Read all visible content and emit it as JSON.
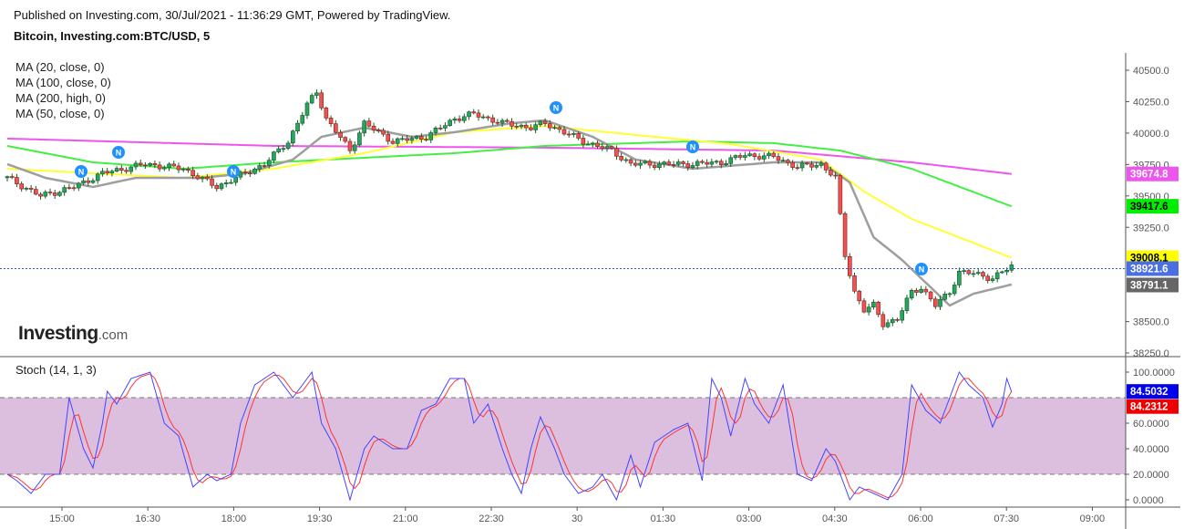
{
  "header": {
    "published": "Published on Investing.com, 30/Jul/2021 - 11:36:29 GMT, Powered by TradingView.",
    "symbol": "Bitcoin, Investing.com:BTC/USD, 5"
  },
  "indicators": [
    "MA (20, close, 0)",
    "MA (100, close, 0)",
    "MA (200, high, 0)",
    "MA (50, close, 0)"
  ],
  "logo": {
    "main": "Investing",
    "suffix": ".com"
  },
  "colors": {
    "up": "#26a65b",
    "down": "#ef5350",
    "ma20": "#9e9e9e",
    "ma50": "#ffff33",
    "ma100": "#44ee44",
    "ma200": "#ee55ee",
    "k": "#4444ff",
    "d": "#ff3333",
    "band": "#dcbfdf"
  },
  "chart_data": [
    {
      "type": "candlestick",
      "title": "Bitcoin, Investing.com:BTC/USD, 5",
      "ylim": [
        38200,
        40600
      ],
      "y_ticks": [
        "40500.0",
        "40250.0",
        "40000.0",
        "39750.0",
        "39500.0",
        "39250.0",
        "38500.0",
        "38250.0"
      ],
      "y_tick_values": [
        40500,
        40250,
        40000,
        39750,
        39500,
        39250,
        38500,
        38250
      ],
      "x_ticks": [
        "15:00",
        "16:30",
        "18:00",
        "19:30",
        "21:00",
        "22:30",
        "30",
        "01:30",
        "03:00",
        "04:30",
        "06:00",
        "07:30",
        "09:00"
      ],
      "bar_minutes": 5,
      "close_keyframes": [
        [
          0,
          39644
        ],
        [
          7,
          39499
        ],
        [
          14,
          39571
        ],
        [
          20,
          39680
        ],
        [
          29,
          39753
        ],
        [
          37,
          39716
        ],
        [
          44,
          39571
        ],
        [
          48,
          39644
        ],
        [
          54,
          39753
        ],
        [
          59,
          39934
        ],
        [
          63,
          40224
        ],
        [
          65,
          40333
        ],
        [
          67,
          40115
        ],
        [
          72,
          39861
        ],
        [
          75,
          40079
        ],
        [
          81,
          39934
        ],
        [
          88,
          39970
        ],
        [
          94,
          40115
        ],
        [
          98,
          40152
        ],
        [
          104,
          40079
        ],
        [
          110,
          40043
        ],
        [
          113,
          40079
        ],
        [
          121,
          39934
        ],
        [
          127,
          39861
        ],
        [
          131,
          39753
        ],
        [
          136,
          39753
        ],
        [
          144,
          39753
        ],
        [
          150,
          39767
        ],
        [
          155,
          39825
        ],
        [
          161,
          39811
        ],
        [
          166,
          39731
        ],
        [
          171,
          39753
        ],
        [
          174,
          39644
        ],
        [
          176,
          39027
        ],
        [
          178,
          38737
        ],
        [
          180,
          38591
        ],
        [
          182,
          38628
        ],
        [
          184,
          38483
        ],
        [
          187,
          38519
        ],
        [
          190,
          38737
        ],
        [
          192,
          38773
        ],
        [
          195,
          38628
        ],
        [
          198,
          38737
        ],
        [
          200,
          38896
        ],
        [
          203,
          38882
        ],
        [
          207,
          38845
        ],
        [
          211,
          38940
        ]
      ],
      "last_price": {
        "value": 38921.6,
        "label": "38921.6"
      },
      "series": [
        {
          "name": "MA (20, close, 0)",
          "color_key": "ma20",
          "last": "38791.1",
          "keyframes": [
            [
              0,
              39753
            ],
            [
              8,
              39644
            ],
            [
              18,
              39571
            ],
            [
              27,
              39644
            ],
            [
              41,
              39644
            ],
            [
              50,
              39680
            ],
            [
              60,
              39789
            ],
            [
              66,
              39970
            ],
            [
              75,
              40043
            ],
            [
              85,
              39970
            ],
            [
              94,
              40007
            ],
            [
              106,
              40079
            ],
            [
              113,
              40101
            ],
            [
              123,
              39970
            ],
            [
              132,
              39789
            ],
            [
              144,
              39716
            ],
            [
              161,
              39767
            ],
            [
              171,
              39767
            ],
            [
              177,
              39607
            ],
            [
              182,
              39172
            ],
            [
              188,
              38990
            ],
            [
              192,
              38845
            ],
            [
              198,
              38628
            ],
            [
              203,
              38722
            ],
            [
              211,
              38795
            ]
          ]
        },
        {
          "name": "MA (50, close, 0)",
          "color_key": "ma50",
          "last": "39008.1",
          "keyframes": [
            [
              0,
              39716
            ],
            [
              18,
              39680
            ],
            [
              37,
              39644
            ],
            [
              56,
              39716
            ],
            [
              75,
              39840
            ],
            [
              94,
              40007
            ],
            [
              113,
              40057
            ],
            [
              132,
              39985
            ],
            [
              152,
              39912
            ],
            [
              171,
              39789
            ],
            [
              180,
              39535
            ],
            [
              190,
              39317
            ],
            [
              211,
              39008
            ]
          ]
        },
        {
          "name": "MA (100, close, 0)",
          "color_key": "ma100",
          "last": "39417.6",
          "keyframes": [
            [
              0,
              39898
            ],
            [
              18,
              39767
            ],
            [
              37,
              39716
            ],
            [
              56,
              39767
            ],
            [
              94,
              39840
            ],
            [
              113,
              39898
            ],
            [
              144,
              39934
            ],
            [
              161,
              39920
            ],
            [
              175,
              39861
            ],
            [
              190,
              39716
            ],
            [
              211,
              39417
            ]
          ]
        },
        {
          "name": "MA (200, high, 0)",
          "color_key": "ma200",
          "last": "39674.8",
          "keyframes": [
            [
              0,
              39956
            ],
            [
              56,
              39898
            ],
            [
              113,
              39884
            ],
            [
              161,
              39861
            ],
            [
              190,
              39767
            ],
            [
              211,
              39675
            ]
          ]
        }
      ]
    },
    {
      "type": "line",
      "title": "Stoch (14, 1, 3)",
      "ylim": [
        -5,
        110
      ],
      "bands": [
        20,
        80
      ],
      "y_ticks": [
        "100.0000",
        "60.0000",
        "40.0000",
        "20.0000",
        "0.0000"
      ],
      "y_tick_values": [
        100,
        60,
        40,
        20,
        0
      ],
      "k_last": "84.5032",
      "d_last": "84.2312",
      "k_keyframes": [
        [
          0,
          20
        ],
        [
          2,
          15
        ],
        [
          5,
          5
        ],
        [
          8,
          20
        ],
        [
          11,
          20
        ],
        [
          13,
          80
        ],
        [
          16,
          40
        ],
        [
          18,
          25
        ],
        [
          20,
          60
        ],
        [
          21,
          85
        ],
        [
          23,
          75
        ],
        [
          26,
          95
        ],
        [
          30,
          100
        ],
        [
          33,
          60
        ],
        [
          36,
          50
        ],
        [
          39,
          10
        ],
        [
          42,
          20
        ],
        [
          44,
          15
        ],
        [
          47,
          20
        ],
        [
          49,
          60
        ],
        [
          52,
          90
        ],
        [
          56,
          100
        ],
        [
          60,
          80
        ],
        [
          64,
          100
        ],
        [
          66,
          60
        ],
        [
          69,
          40
        ],
        [
          72,
          0
        ],
        [
          75,
          40
        ],
        [
          77,
          50
        ],
        [
          81,
          40
        ],
        [
          84,
          40
        ],
        [
          87,
          70
        ],
        [
          90,
          75
        ],
        [
          93,
          95
        ],
        [
          96,
          95
        ],
        [
          98,
          60
        ],
        [
          101,
          75
        ],
        [
          104,
          40
        ],
        [
          106,
          20
        ],
        [
          108,
          5
        ],
        [
          110,
          40
        ],
        [
          112,
          65
        ],
        [
          115,
          40
        ],
        [
          117,
          20
        ],
        [
          120,
          5
        ],
        [
          123,
          10
        ],
        [
          125,
          20
        ],
        [
          128,
          0
        ],
        [
          131,
          35
        ],
        [
          133,
          10
        ],
        [
          136,
          45
        ],
        [
          140,
          55
        ],
        [
          143,
          60
        ],
        [
          146,
          15
        ],
        [
          148,
          95
        ],
        [
          150,
          80
        ],
        [
          152,
          50
        ],
        [
          155,
          95
        ],
        [
          157,
          75
        ],
        [
          160,
          60
        ],
        [
          163,
          90
        ],
        [
          166,
          20
        ],
        [
          169,
          15
        ],
        [
          172,
          40
        ],
        [
          174,
          30
        ],
        [
          177,
          0
        ],
        [
          179,
          10
        ],
        [
          182,
          5
        ],
        [
          185,
          0
        ],
        [
          188,
          20
        ],
        [
          190,
          90
        ],
        [
          193,
          70
        ],
        [
          196,
          60
        ],
        [
          200,
          100
        ],
        [
          202,
          90
        ],
        [
          205,
          80
        ],
        [
          207,
          57
        ],
        [
          209,
          75
        ],
        [
          210,
          95
        ],
        [
          211,
          84.5
        ]
      ]
    }
  ]
}
